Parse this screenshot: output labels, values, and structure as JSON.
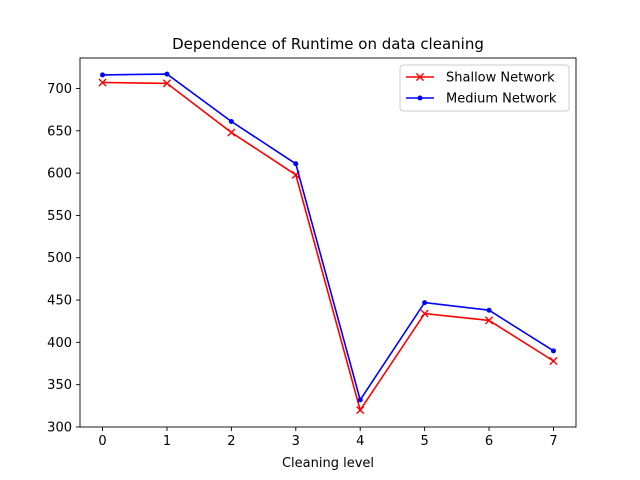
{
  "chart_data": {
    "type": "line",
    "title": "Dependence of Runtime on data cleaning",
    "xlabel": "Cleaning level",
    "ylabel": "",
    "x": [
      0,
      1,
      2,
      3,
      4,
      5,
      6,
      7
    ],
    "xlim": [
      -0.35,
      7.35
    ],
    "ylim": [
      300,
      736
    ],
    "xticks": [
      0,
      1,
      2,
      3,
      4,
      5,
      6,
      7
    ],
    "yticks": [
      300,
      350,
      400,
      450,
      500,
      550,
      600,
      650,
      700
    ],
    "grid": false,
    "legend": "upper-right",
    "series": [
      {
        "name": "Shallow Network",
        "color": "#ff0000",
        "marker": "x",
        "values": [
          707,
          706,
          648,
          598,
          320,
          434,
          426,
          378
        ]
      },
      {
        "name": "Medium Network",
        "color": "#0000ff",
        "marker": "dot",
        "values": [
          716,
          717,
          661,
          611,
          332,
          447,
          438,
          390
        ]
      }
    ]
  }
}
